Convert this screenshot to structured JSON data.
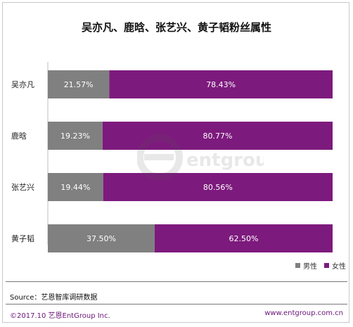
{
  "chart_data": {
    "type": "bar",
    "orientation": "horizontal",
    "stacked": true,
    "title": "吴亦凡、鹿晗、张艺兴、黄子韬粉丝属性",
    "categories": [
      "吴亦凡",
      "鹿晗",
      "张艺兴",
      "黄子韬"
    ],
    "series": [
      {
        "name": "男性",
        "values": [
          21.57,
          19.23,
          19.44,
          37.5
        ],
        "labels": [
          "21.57%",
          "19.23%",
          "19.44%",
          "37.50%"
        ],
        "color": "#808080"
      },
      {
        "name": "女性",
        "values": [
          78.43,
          80.77,
          80.56,
          62.5
        ],
        "labels": [
          "78.43%",
          "80.77%",
          "80.56%",
          "62.50%"
        ],
        "color": "#7d1a7d"
      }
    ],
    "xlim": [
      0,
      100
    ],
    "grid": false,
    "legend": "bottom-right"
  },
  "source": "Source：艺恩智库调研数据",
  "footer": {
    "copyright": "©2017.10 艺恩EntGroup Inc.",
    "website": "www.entgroup.com.cn"
  },
  "watermark": {
    "text": "entgroup"
  }
}
